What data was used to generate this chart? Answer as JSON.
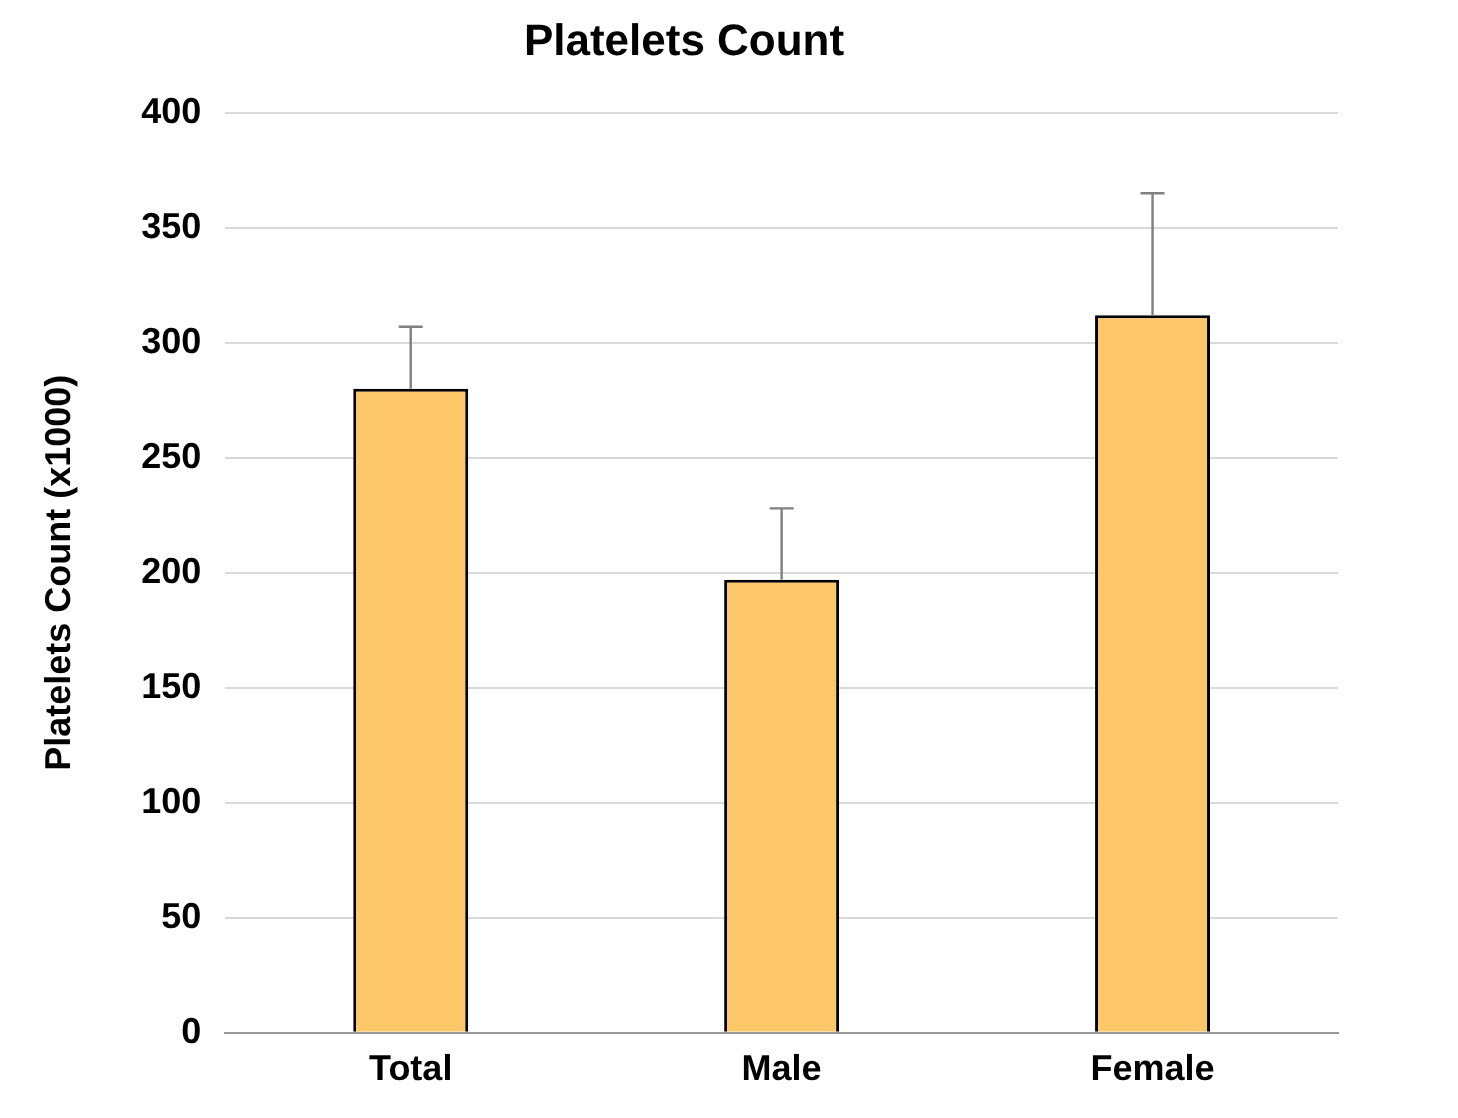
{
  "chart_data": {
    "type": "bar",
    "title": "Platelets Count",
    "ylabel": "Platelets Count (x1000)",
    "categories": [
      "Total",
      "Male",
      "Female"
    ],
    "values": [
      280,
      197,
      312
    ],
    "errors": [
      [
        280,
        307
      ],
      [
        197,
        228
      ],
      [
        312,
        365
      ]
    ],
    "color": "#fdc76a",
    "ylim": [
      0,
      400
    ],
    "yticks": [
      0,
      50,
      100,
      150,
      200,
      250,
      300,
      350,
      400
    ],
    "grid": "y",
    "legend": false
  }
}
